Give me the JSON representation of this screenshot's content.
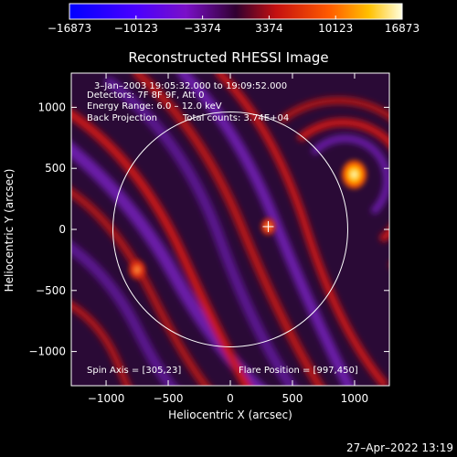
{
  "chart_data": {
    "type": "heatmap",
    "title": "Reconstructed RHESSI Image",
    "xlabel": "Heliocentric X (arcsec)",
    "ylabel": "Heliocentric Y (arcsec)",
    "xlim": [
      -1280,
      1280
    ],
    "ylim": [
      -1280,
      1280
    ],
    "x_ticks": [
      -1000,
      -500,
      0,
      500,
      1000
    ],
    "x_tick_labels": [
      "−1000",
      "−500",
      "0",
      "500",
      "1000"
    ],
    "y_ticks": [
      -1000,
      -500,
      0,
      500,
      1000
    ],
    "y_tick_labels": [
      "−1000",
      "−500",
      "0",
      "500",
      "1000"
    ],
    "colorbar": {
      "range": [
        -16873,
        16873
      ],
      "ticks": [
        -16873,
        -10123,
        -3374,
        3374,
        10123,
        16873
      ],
      "tick_labels": [
        "−16873",
        "−10123",
        "−3374",
        "3374",
        "10123",
        "16873"
      ]
    },
    "annotations": {
      "time_range": "3–Jan–2003 19:05:32.000 to 19:09:52.000",
      "detectors": "Detectors: 7F 8F 9F, Att 0",
      "energy": "Energy Range: 6.0 – 12.0 keV",
      "method": "Back Projection",
      "counts": "Total counts: 3.74E+04",
      "spin_axis": "Spin Axis = [305,23]",
      "flare_position": "Flare Position = [997,450]"
    },
    "solar_limb_radius_arcsec": 945,
    "disk_center_marker": [
      305,
      23
    ],
    "sources": [
      {
        "x": 997,
        "y": 450,
        "peak": 16873
      },
      {
        "x": 305,
        "y": 23,
        "peak": 7000
      },
      {
        "x": -750,
        "y": -330,
        "peak": 9000
      }
    ],
    "timestamp": "27–Apr–2022 13:19"
  }
}
